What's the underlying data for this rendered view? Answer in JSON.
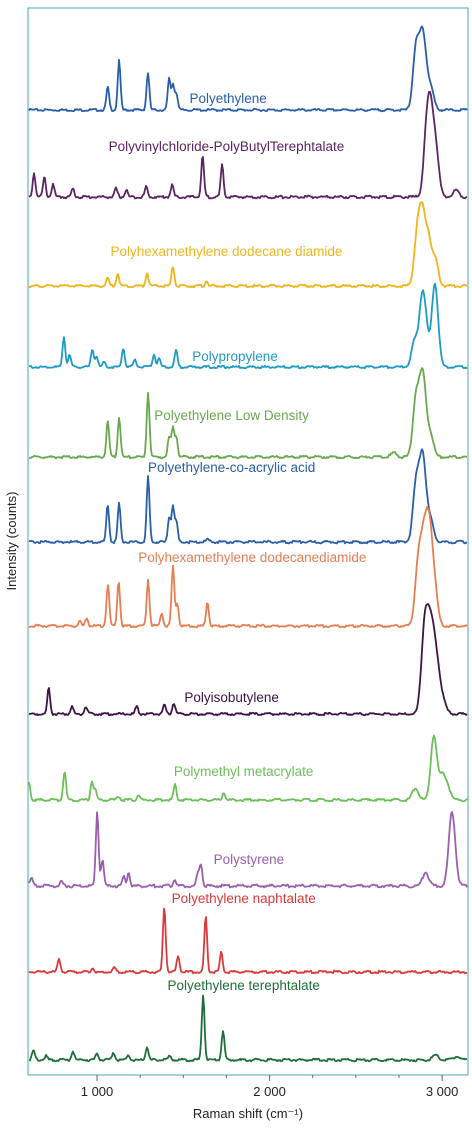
{
  "chart_data": {
    "type": "line",
    "xlabel": "Raman shift (cm⁻¹)",
    "ylabel": "Intensity (counts)",
    "xlim": [
      600,
      3150
    ],
    "x_ticks": [
      1000,
      2000,
      3000
    ],
    "x_tick_labels": [
      "1 000",
      "2 000",
      "3 000"
    ],
    "stacked": true,
    "grid": false,
    "series": [
      {
        "name": "Polyethylene",
        "color": "#2a5ea8",
        "label_at": 1760,
        "peaks": [
          [
            1062,
            0.38
          ],
          [
            1128,
            0.82
          ],
          [
            1295,
            0.62
          ],
          [
            1418,
            0.52
          ],
          [
            1440,
            0.42
          ],
          [
            1460,
            0.28
          ],
          [
            2848,
            1.0
          ],
          [
            2882,
            0.9
          ],
          [
            2900,
            0.55
          ],
          [
            2935,
            0.35
          ]
        ]
      },
      {
        "name": "Polyvinylchloride-PolyButylTerephtalate",
        "color": "#5b2463",
        "label_at": 1750,
        "peaks": [
          [
            635,
            0.35
          ],
          [
            695,
            0.28
          ],
          [
            745,
            0.18
          ],
          [
            860,
            0.12
          ],
          [
            1110,
            0.12
          ],
          [
            1170,
            0.1
          ],
          [
            1285,
            0.15
          ],
          [
            1435,
            0.18
          ],
          [
            1612,
            0.58
          ],
          [
            1725,
            0.45
          ],
          [
            2910,
            0.85
          ],
          [
            2935,
            1.0
          ],
          [
            2965,
            0.6
          ],
          [
            3080,
            0.1
          ]
        ]
      },
      {
        "name": "Polyhexamethylene dodecane diamide",
        "color": "#f0b41c",
        "label_at": 1750,
        "peaks": [
          [
            1062,
            0.12
          ],
          [
            1120,
            0.2
          ],
          [
            1290,
            0.2
          ],
          [
            1440,
            0.3
          ],
          [
            1635,
            0.08
          ],
          [
            2855,
            0.75
          ],
          [
            2885,
            1.0
          ],
          [
            2920,
            0.7
          ],
          [
            2960,
            0.4
          ]
        ]
      },
      {
        "name": "Polypropylene",
        "color": "#1f9ac7",
        "label_at": 1800,
        "peaks": [
          [
            808,
            0.5
          ],
          [
            841,
            0.2
          ],
          [
            973,
            0.3
          ],
          [
            998,
            0.18
          ],
          [
            1040,
            0.08
          ],
          [
            1152,
            0.32
          ],
          [
            1220,
            0.12
          ],
          [
            1330,
            0.22
          ],
          [
            1360,
            0.14
          ],
          [
            1458,
            0.28
          ],
          [
            2840,
            0.42
          ],
          [
            2883,
            1.0
          ],
          [
            2905,
            0.5
          ],
          [
            2955,
            0.95
          ],
          [
            2965,
            0.5
          ]
        ]
      },
      {
        "name": "Polyethylene Low Density",
        "color": "#6aa84f",
        "label_at": 1780,
        "peaks": [
          [
            1062,
            0.55
          ],
          [
            1128,
            0.62
          ],
          [
            1296,
            1.0
          ],
          [
            1418,
            0.3
          ],
          [
            1440,
            0.45
          ],
          [
            1460,
            0.3
          ],
          [
            2720,
            0.06
          ],
          [
            2848,
            0.88
          ],
          [
            2882,
            0.92
          ],
          [
            2900,
            0.5
          ],
          [
            2935,
            0.3
          ]
        ]
      },
      {
        "name": "Polyethylene-co-acrylic acid",
        "color": "#2a5ea8",
        "label_at": 1780,
        "peaks": [
          [
            1062,
            0.58
          ],
          [
            1128,
            0.6
          ],
          [
            1296,
            1.0
          ],
          [
            1418,
            0.38
          ],
          [
            1440,
            0.55
          ],
          [
            1460,
            0.3
          ],
          [
            1640,
            0.04
          ],
          [
            2848,
            0.85
          ],
          [
            2882,
            1.0
          ],
          [
            2900,
            0.5
          ],
          [
            2935,
            0.3
          ]
        ]
      },
      {
        "name": "Polyhexamethylene dodecanediamide",
        "color": "#e57e52",
        "label_at": 1900,
        "peaks": [
          [
            900,
            0.08
          ],
          [
            940,
            0.12
          ],
          [
            1063,
            0.65
          ],
          [
            1125,
            0.7
          ],
          [
            1296,
            0.72
          ],
          [
            1375,
            0.2
          ],
          [
            1440,
            0.92
          ],
          [
            1465,
            0.35
          ],
          [
            1640,
            0.38
          ],
          [
            2860,
            0.9
          ],
          [
            2890,
            0.98
          ],
          [
            2915,
            1.0
          ],
          [
            2935,
            0.85
          ],
          [
            2960,
            0.4
          ]
        ]
      },
      {
        "name": "Polyisobutylene",
        "color": "#3b1545",
        "label_at": 1780,
        "peaks": [
          [
            720,
            0.42
          ],
          [
            855,
            0.12
          ],
          [
            935,
            0.12
          ],
          [
            1230,
            0.12
          ],
          [
            1390,
            0.15
          ],
          [
            1445,
            0.18
          ],
          [
            2890,
            0.6
          ],
          [
            2905,
            0.95
          ],
          [
            2930,
            1.0
          ],
          [
            2955,
            0.8
          ],
          [
            2980,
            0.45
          ],
          [
            3010,
            0.15
          ]
        ]
      },
      {
        "name": "Polymethyl metacrylate",
        "color": "#6cbf5a",
        "label_at": 1850,
        "peaks": [
          [
            605,
            0.28
          ],
          [
            812,
            0.45
          ],
          [
            970,
            0.28
          ],
          [
            990,
            0.15
          ],
          [
            1125,
            0.06
          ],
          [
            1240,
            0.08
          ],
          [
            1452,
            0.24
          ],
          [
            1735,
            0.12
          ],
          [
            2845,
            0.18
          ],
          [
            2952,
            1.0
          ],
          [
            3000,
            0.35
          ],
          [
            3030,
            0.2
          ]
        ]
      },
      {
        "name": "Polystyrene",
        "color": "#9b5fb0",
        "label_at": 1880,
        "peaks": [
          [
            620,
            0.1
          ],
          [
            795,
            0.06
          ],
          [
            1001,
            1.0
          ],
          [
            1031,
            0.35
          ],
          [
            1155,
            0.12
          ],
          [
            1183,
            0.18
          ],
          [
            1450,
            0.1
          ],
          [
            1583,
            0.15
          ],
          [
            1602,
            0.3
          ],
          [
            2905,
            0.18
          ],
          [
            3054,
            0.75
          ],
          [
            3067,
            0.3
          ]
        ]
      },
      {
        "name": "Polyethylene naphtalate",
        "color": "#d93a3a",
        "label_at": 1850,
        "peaks": [
          [
            780,
            0.2
          ],
          [
            975,
            0.06
          ],
          [
            1100,
            0.06
          ],
          [
            1390,
            1.0
          ],
          [
            1470,
            0.25
          ],
          [
            1630,
            0.85
          ],
          [
            1720,
            0.3
          ]
        ]
      },
      {
        "name": "Polyethylene terephtalate",
        "color": "#1e6e3a",
        "label_at": 1850,
        "peaks": [
          [
            632,
            0.14
          ],
          [
            705,
            0.06
          ],
          [
            860,
            0.14
          ],
          [
            1000,
            0.1
          ],
          [
            1095,
            0.12
          ],
          [
            1180,
            0.08
          ],
          [
            1290,
            0.2
          ],
          [
            1420,
            0.06
          ],
          [
            1615,
            1.0
          ],
          [
            1730,
            0.45
          ],
          [
            2960,
            0.07
          ],
          [
            3085,
            0.06
          ]
        ]
      }
    ]
  }
}
